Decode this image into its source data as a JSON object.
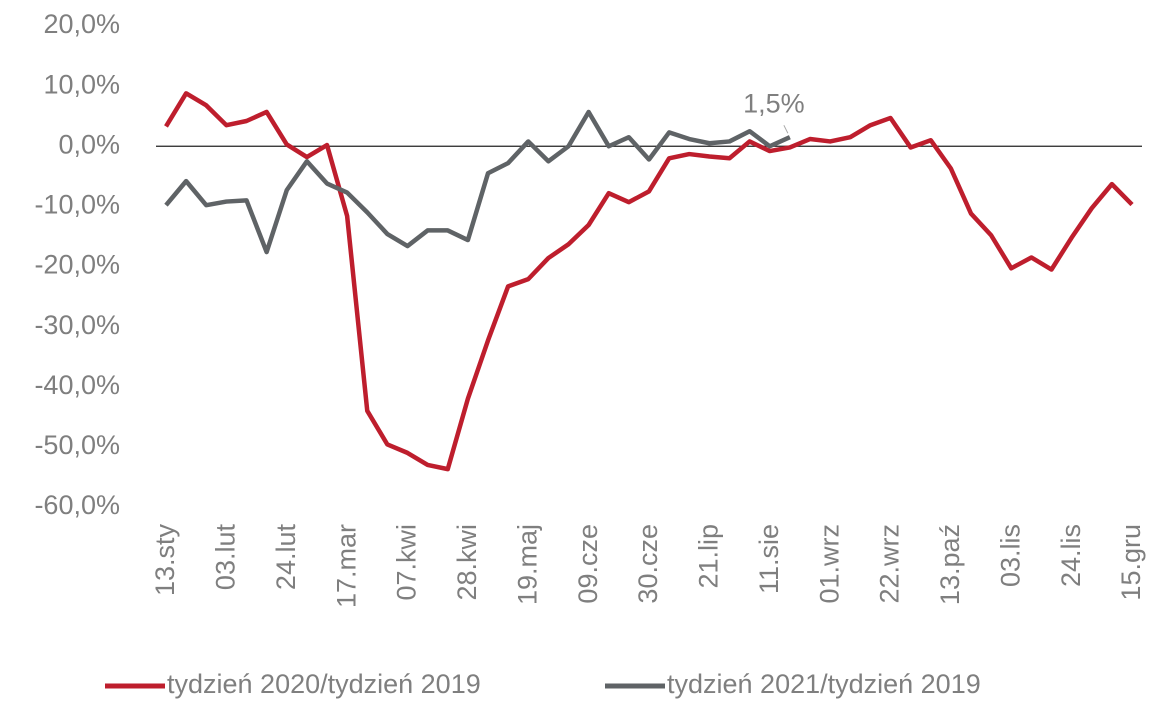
{
  "chart_data": {
    "type": "line",
    "categories": [
      "13.sty",
      null,
      null,
      "03.lut",
      null,
      null,
      "24.lut",
      null,
      null,
      "17.mar",
      null,
      null,
      "07.kwi",
      null,
      null,
      "28.kwi",
      null,
      null,
      "19.maj",
      null,
      null,
      "09.cze",
      null,
      null,
      "30.cze",
      null,
      null,
      "21.lip",
      null,
      null,
      "11.sie",
      null,
      null,
      "01.wrz",
      null,
      null,
      "22.wrz",
      null,
      null,
      "13.paź",
      null,
      null,
      "03.lis",
      null,
      null,
      "24.lis",
      null,
      null,
      "15.gru"
    ],
    "series": [
      {
        "name": "tydzień 2020/tydzień 2019",
        "color": "#be1e2d",
        "values": [
          3.3,
          8.8,
          6.8,
          3.5,
          4.2,
          5.7,
          0.3,
          -1.8,
          0.2,
          -11.6,
          -44,
          -49.6,
          -51,
          -53,
          -53.7,
          -42,
          -32.3,
          -23.3,
          -22.1,
          -18.6,
          -16.3,
          -13.1,
          -7.8,
          -9.3,
          -7.5,
          -2,
          -1.3,
          -1.7,
          -2,
          0.8,
          -0.8,
          -0.2,
          1.2,
          0.8,
          1.5,
          3.5,
          4.7,
          -0.2,
          1.0,
          -3.7,
          -11.2,
          -14.8,
          -20.3,
          -18.5,
          -20.5,
          -15.2,
          -10.3,
          -6.3,
          -9.7
        ]
      },
      {
        "name": "tydzień 2021/tydzień 2019",
        "color": "#5f6366",
        "values": [
          -9.8,
          -5.8,
          -9.8,
          -9.2,
          -9.0,
          -17.6,
          -7.3,
          -2.5,
          -6.2,
          -7.7,
          -11,
          -14.6,
          -16.6,
          -14,
          -14,
          -15.6,
          -4.5,
          -2.8,
          0.8,
          -2.5,
          0,
          5.7,
          0,
          1.5,
          -2.2,
          2.3,
          1.2,
          0.5,
          0.8,
          2.5,
          0,
          1.5,
          null,
          null,
          null,
          null,
          null,
          null,
          null,
          null,
          null,
          null,
          null,
          null,
          null,
          null,
          null,
          null,
          null
        ],
        "value_labels": [
          null,
          null,
          null,
          null,
          null,
          null,
          null,
          null,
          null,
          null,
          null,
          null,
          null,
          null,
          null,
          null,
          null,
          null,
          null,
          null,
          null,
          null,
          null,
          null,
          null,
          null,
          null,
          null,
          null,
          null,
          null,
          "1,5%",
          null,
          null,
          null,
          null,
          null,
          null,
          null,
          null,
          null,
          null,
          null,
          null,
          null,
          null,
          null,
          null,
          null
        ]
      }
    ],
    "ylim": [
      -60,
      20
    ],
    "yticks": [
      {
        "value": -60,
        "label": "-60,0%"
      },
      {
        "value": -50,
        "label": "-50,0%"
      },
      {
        "value": -40,
        "label": "-40,0%"
      },
      {
        "value": -30,
        "label": "-30,0%"
      },
      {
        "value": -20,
        "label": "-20,0%"
      },
      {
        "value": -10,
        "label": "-10,0%"
      },
      {
        "value": 0,
        "label": "0,0%"
      },
      {
        "value": 10,
        "label": "10,0%"
      },
      {
        "value": 20,
        "label": "20,0%"
      }
    ],
    "grid": false,
    "legend": "bottom"
  }
}
